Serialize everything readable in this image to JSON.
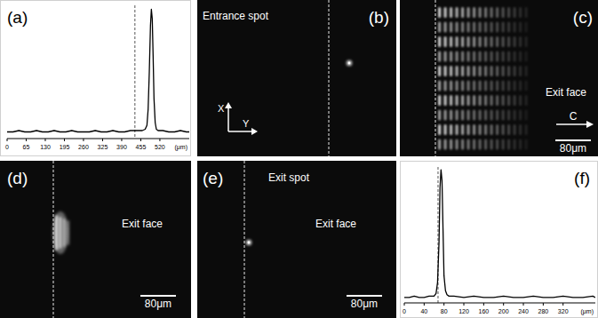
{
  "chart_data": [
    {
      "type": "line",
      "title": "(a)",
      "x_label": "(μm)",
      "color": "#000000",
      "tick_labels": "x",
      "xlim": [
        0,
        620
      ],
      "ylim": [
        0,
        1
      ],
      "xticks": [
        0,
        65,
        130,
        195,
        260,
        325,
        390,
        455,
        520
      ],
      "vline": 435,
      "x": [
        0,
        20,
        40,
        60,
        80,
        100,
        120,
        140,
        160,
        180,
        200,
        220,
        240,
        260,
        280,
        300,
        320,
        340,
        360,
        380,
        400,
        420,
        440,
        460,
        470,
        476,
        480,
        484,
        488,
        491,
        494,
        497,
        500,
        504,
        508,
        514,
        530,
        550,
        570,
        590,
        610,
        620
      ],
      "values": [
        0.05,
        0.05,
        0.06,
        0.05,
        0.05,
        0.06,
        0.05,
        0.05,
        0.06,
        0.05,
        0.05,
        0.06,
        0.05,
        0.05,
        0.05,
        0.06,
        0.05,
        0.05,
        0.06,
        0.05,
        0.05,
        0.06,
        0.06,
        0.06,
        0.07,
        0.1,
        0.22,
        0.5,
        0.85,
        0.97,
        0.9,
        0.62,
        0.3,
        0.12,
        0.07,
        0.06,
        0.06,
        0.05,
        0.05,
        0.06,
        0.05,
        0.05
      ]
    },
    {
      "type": "line",
      "title": "(f)",
      "x_label": "(μm)",
      "color": "#000000",
      "tick_labels": "x",
      "xlim": [
        0,
        385
      ],
      "ylim": [
        0,
        1
      ],
      "xticks": [
        0,
        40,
        80,
        120,
        160,
        200,
        240,
        280,
        320
      ],
      "vline": 68,
      "x": [
        0,
        10,
        20,
        30,
        40,
        50,
        60,
        64,
        67,
        70,
        72,
        74,
        76,
        78,
        80,
        83,
        86,
        90,
        100,
        120,
        140,
        160,
        180,
        200,
        220,
        240,
        260,
        280,
        300,
        320,
        340,
        360,
        380,
        385
      ],
      "values": [
        0.04,
        0.04,
        0.05,
        0.04,
        0.04,
        0.05,
        0.05,
        0.07,
        0.15,
        0.45,
        0.85,
        0.98,
        0.9,
        0.55,
        0.2,
        0.09,
        0.06,
        0.05,
        0.05,
        0.04,
        0.05,
        0.04,
        0.04,
        0.05,
        0.04,
        0.04,
        0.05,
        0.04,
        0.04,
        0.05,
        0.04,
        0.04,
        0.05,
        0.04
      ]
    }
  ],
  "panels": [
    {
      "label": "(b)",
      "caption": "Entrance spot",
      "axes": [
        "X",
        "Y"
      ]
    },
    {
      "label": "(c)",
      "caption": "Exit face",
      "axes": [
        "C"
      ],
      "scale": "80μm"
    },
    {
      "label": "(d)",
      "caption": "Exit face",
      "scale": "80μm"
    },
    {
      "label": "(e)",
      "caption": "Exit spot",
      "caption2": "Exit face",
      "scale": "80μm"
    }
  ]
}
